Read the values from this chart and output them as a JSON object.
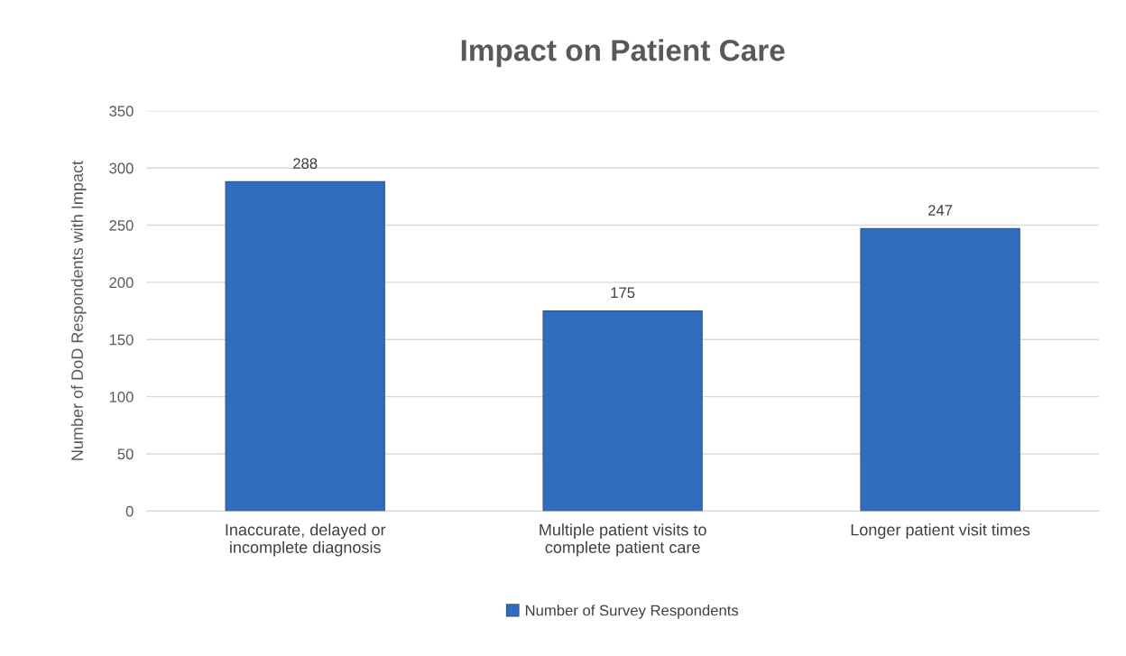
{
  "chart_data": {
    "type": "bar",
    "title": "Impact on Patient Care",
    "ylabel": "Number of DoD Respondents with Impact",
    "categories": [
      "Inaccurate, delayed or\nincomplete diagnosis",
      "Multiple patient visits to\ncomplete patient care",
      "Longer patient visit times"
    ],
    "series": [
      {
        "name": "Number of Survey Respondents",
        "color": "#2f6dbf",
        "values": [
          288,
          175,
          247
        ]
      }
    ],
    "ylim": [
      0,
      350
    ],
    "yticks": [
      0,
      50,
      100,
      150,
      200,
      250,
      300,
      350
    ],
    "grid": "y",
    "legend": "bottom",
    "data_labels": true
  }
}
